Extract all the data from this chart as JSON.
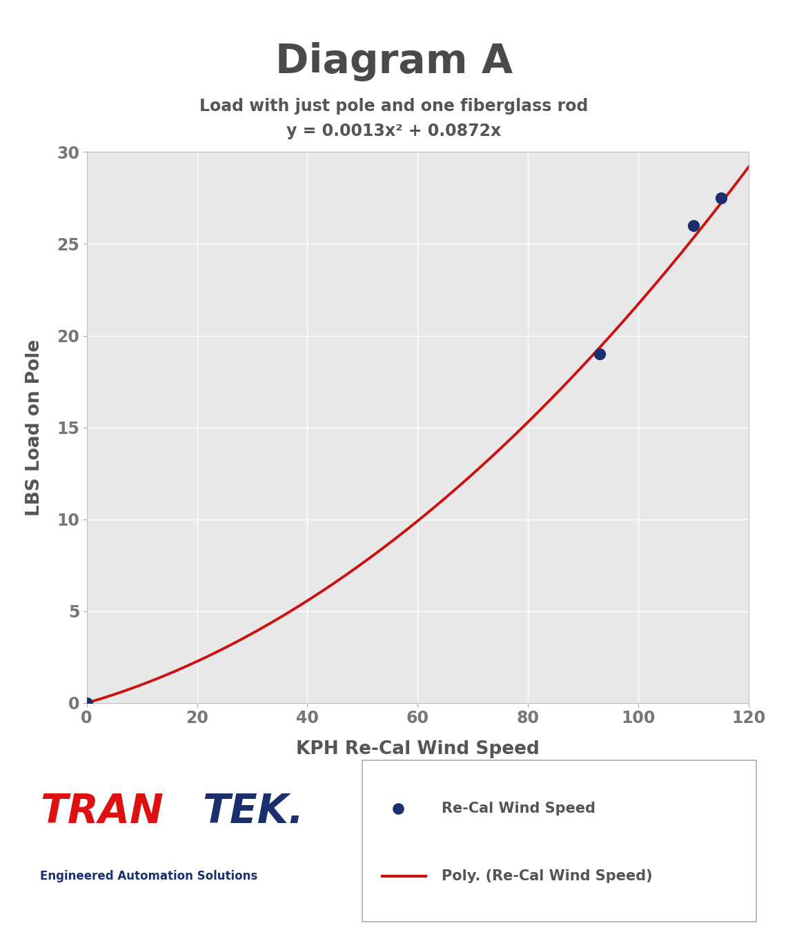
{
  "title": "Diagram A",
  "subtitle_line1": "Load with just pole and one fiberglass rod",
  "subtitle_line2": "y = 0.0013x² + 0.0872x",
  "xlabel": "KPH Re-Cal Wind Speed",
  "ylabel": "LBS Load on Pole",
  "title_color": "#4a4a4a",
  "subtitle_color": "#555555",
  "axis_label_color": "#555555",
  "tick_color": "#777777",
  "background_color": "#ffffff",
  "plot_bg_color": "#e8e8e8",
  "grid_color": "#ffffff",
  "data_x": [
    0,
    93,
    110,
    115
  ],
  "data_y": [
    0,
    19,
    26,
    27.5
  ],
  "poly_a": 0.0013,
  "poly_b": 0.0872,
  "curve_color": "#cc1111",
  "dot_color": "#1a2f6e",
  "xlim": [
    0,
    120
  ],
  "ylim": [
    0,
    30
  ],
  "xticks": [
    0,
    20,
    40,
    60,
    80,
    100,
    120
  ],
  "yticks": [
    0,
    5,
    10,
    15,
    20,
    25,
    30
  ],
  "legend_dot_label": "Re-Cal Wind Speed",
  "legend_line_label": "Poly. (Re-Cal Wind Speed)",
  "title_fontsize": 42,
  "subtitle_fontsize": 17,
  "axis_label_fontsize": 19,
  "tick_fontsize": 17,
  "tran_color": "#dd1111",
  "tek_color": "#1a2f6e",
  "logo_sub_color": "#1a2f6e"
}
